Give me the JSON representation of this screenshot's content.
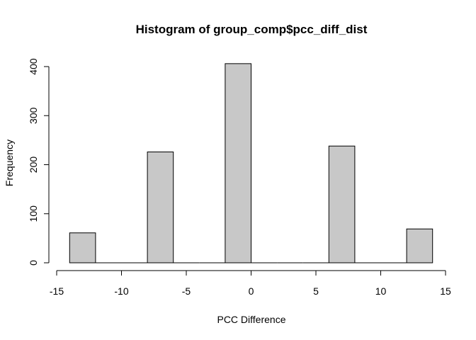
{
  "chart_data": {
    "type": "bar",
    "title": "Histogram of group_comp$pcc_diff_dist",
    "xlabel": "PCC Difference",
    "ylabel": "Frequency",
    "bin_width": 2,
    "bins": [
      {
        "start": -14,
        "end": -12,
        "count": 61
      },
      {
        "start": -12,
        "end": -10,
        "count": 0
      },
      {
        "start": -10,
        "end": -8,
        "count": 0
      },
      {
        "start": -8,
        "end": -6,
        "count": 226
      },
      {
        "start": -6,
        "end": -4,
        "count": 0
      },
      {
        "start": -4,
        "end": -2,
        "count": 0
      },
      {
        "start": -2,
        "end": 0,
        "count": 406
      },
      {
        "start": 0,
        "end": 2,
        "count": 0
      },
      {
        "start": 2,
        "end": 4,
        "count": 0
      },
      {
        "start": 4,
        "end": 6,
        "count": 0
      },
      {
        "start": 6,
        "end": 8,
        "count": 238
      },
      {
        "start": 8,
        "end": 10,
        "count": 0
      },
      {
        "start": 10,
        "end": 12,
        "count": 0
      },
      {
        "start": 12,
        "end": 14,
        "count": 69
      }
    ],
    "xlim": [
      -15,
      15
    ],
    "ylim": [
      0,
      400
    ],
    "x_ticks": [
      "-15",
      "-10",
      "-5",
      "0",
      "5",
      "10",
      "15"
    ],
    "y_ticks": [
      "0",
      "100",
      "200",
      "300",
      "400"
    ],
    "bar_color": "#c8c8c8",
    "grid": false,
    "legend": "none"
  }
}
